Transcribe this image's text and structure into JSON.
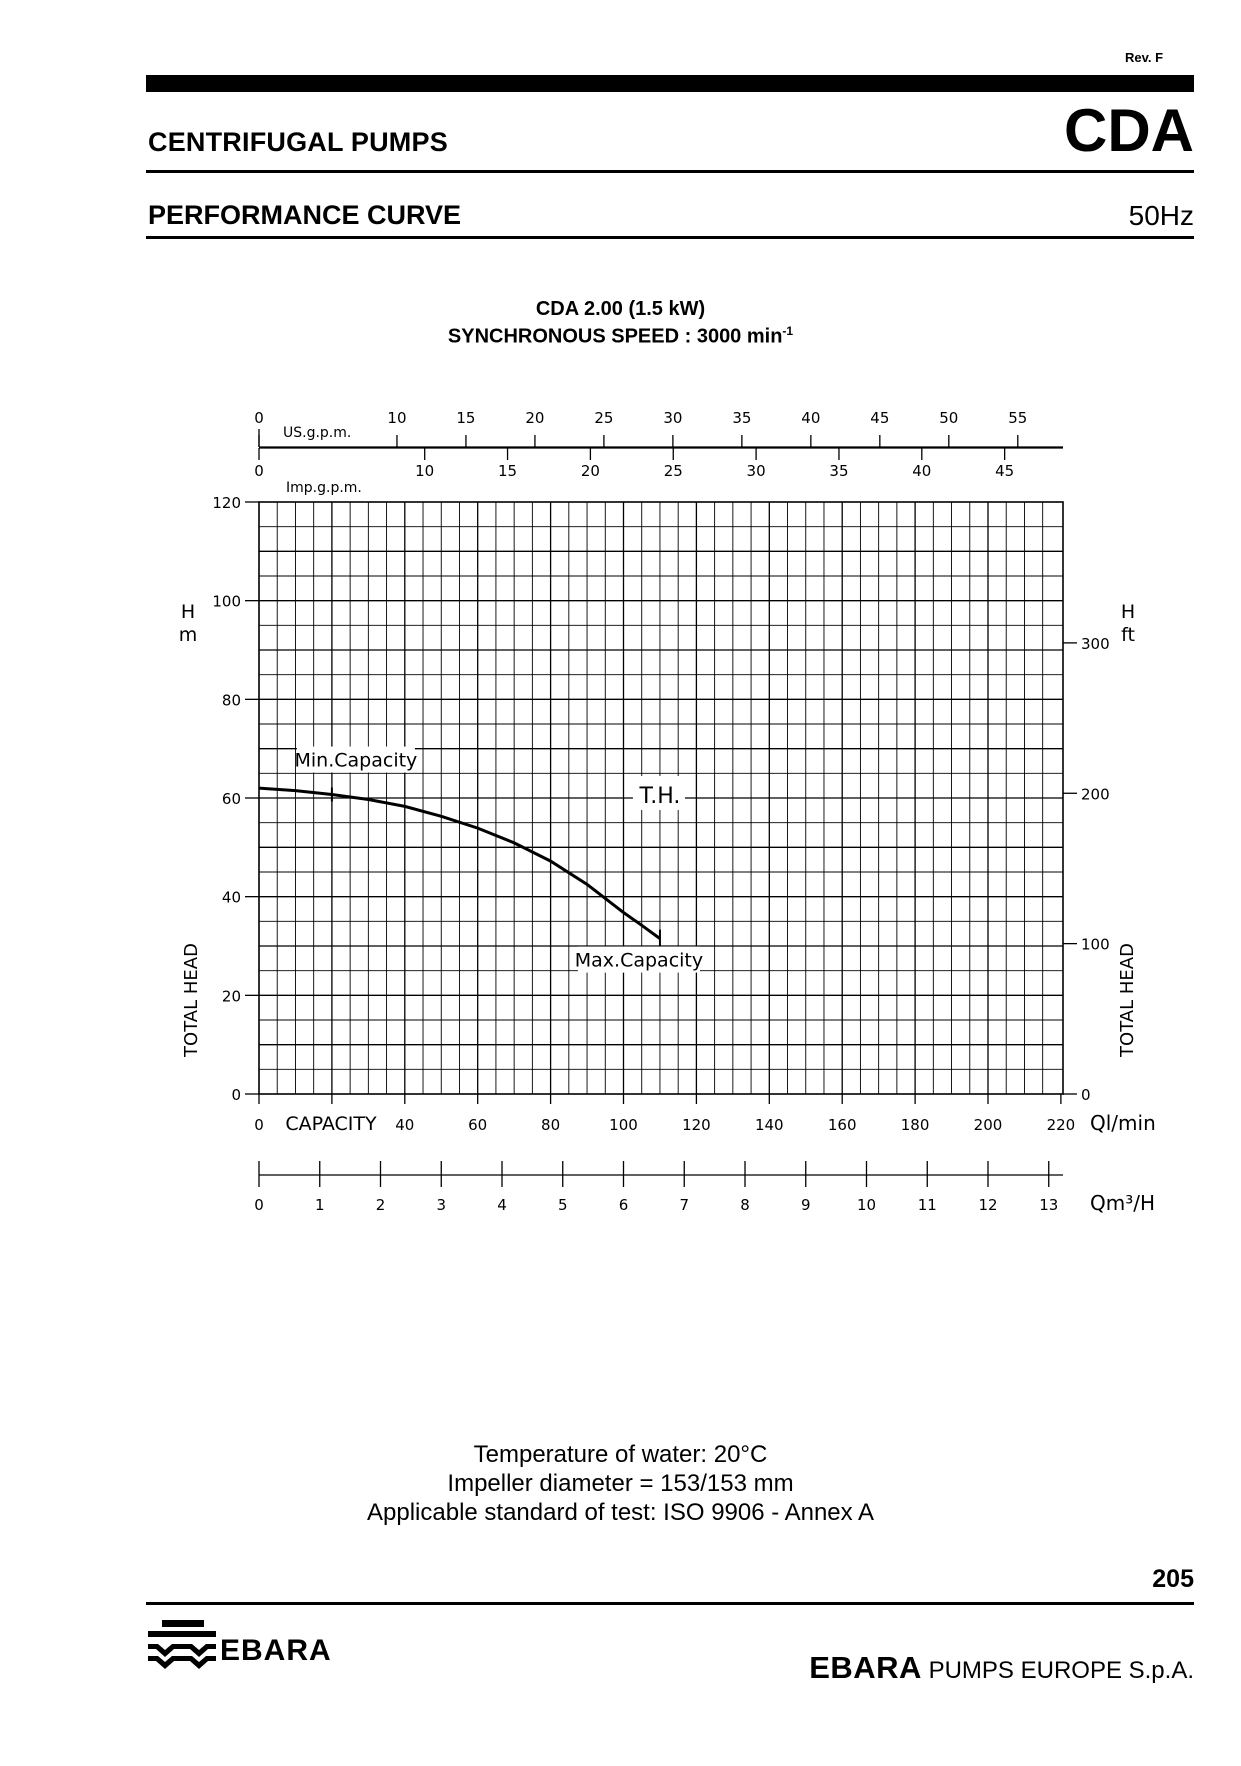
{
  "header": {
    "revision": "Rev. F",
    "category": "CENTRIFUGAL PUMPS",
    "series_code": "CDA",
    "section": "PERFORMANCE CURVE",
    "frequency": "50Hz"
  },
  "chart_title": {
    "line1": "CDA 2.00 (1.5 kW)",
    "line2": "SYNCHRONOUS SPEED : 3000 min",
    "line2_superscript": "-1"
  },
  "chart_data": {
    "type": "line",
    "series": [
      {
        "name": "T.H.",
        "x": [
          0,
          10,
          20,
          30,
          40,
          50,
          60,
          70,
          80,
          90,
          100,
          105,
          110
        ],
        "y": [
          62,
          61.5,
          60.7,
          59.7,
          58.3,
          56.3,
          53.9,
          50.9,
          47.2,
          42.5,
          36.8,
          34.2,
          31.5
        ]
      }
    ],
    "xlim": [
      0,
      220
    ],
    "ylim": [
      0,
      120
    ],
    "x_ticks": [
      0,
      20,
      40,
      60,
      80,
      100,
      120,
      140,
      160,
      180,
      200,
      220
    ],
    "x_tick_labels": [
      "0",
      "",
      "40",
      "60",
      "80",
      "100",
      "120",
      "140",
      "160",
      "180",
      "200",
      "220"
    ],
    "y_ticks": [
      0,
      20,
      40,
      60,
      80,
      100,
      120
    ],
    "y_tick_labels": [
      "0",
      "20",
      "40",
      "60",
      "80",
      "100",
      "120"
    ],
    "xlabel": "CAPACITY",
    "x_unit": "Ql/min",
    "ylabel_left_word": "TOTAL HEAD",
    "ylabel_left_sym": "H",
    "ylabel_left_unit": "m",
    "ylabel_right_word": "TOTAL HEAD",
    "ylabel_right_sym": "H",
    "ylabel_right_unit": "ft",
    "right_axis": {
      "ticks": [
        0,
        100,
        200,
        300
      ],
      "tick_labels": [
        "0",
        "100",
        "200",
        "300"
      ]
    },
    "us_gpm_axis": {
      "label": "US.g.p.m.",
      "ticks": [
        0,
        10,
        15,
        20,
        25,
        30,
        35,
        40,
        45,
        50,
        55
      ],
      "tick_labels": [
        "0",
        "10",
        "15",
        "20",
        "25",
        "30",
        "35",
        "40",
        "45",
        "50",
        "55"
      ]
    },
    "imp_gpm_axis": {
      "label": "Imp.g.p.m.",
      "ticks": [
        0,
        10,
        15,
        20,
        25,
        30,
        35,
        40,
        45
      ],
      "tick_labels": [
        "0",
        "10",
        "15",
        "20",
        "25",
        "30",
        "35",
        "40",
        "45"
      ]
    },
    "m3h_axis": {
      "unit": "Qm³/H",
      "ticks": [
        0,
        1,
        2,
        3,
        4,
        5,
        6,
        7,
        8,
        9,
        10,
        11,
        12,
        13
      ],
      "tick_labels": [
        "0",
        "1",
        "2",
        "3",
        "4",
        "5",
        "6",
        "7",
        "8",
        "9",
        "10",
        "11",
        "12",
        "13"
      ]
    },
    "annotations": {
      "min_capacity": {
        "text": "Min.Capacity",
        "x": 20,
        "y": 60.7
      },
      "max_capacity": {
        "text": "Max.Capacity",
        "x": 110,
        "y": 31.5
      },
      "curve_label": {
        "text": "T.H.",
        "x": 110,
        "y": 60
      }
    },
    "grid": true
  },
  "notes": {
    "line1": "Temperature of water: 20°C",
    "line2": "Impeller diameter = 153/153 mm",
    "line3": "Applicable standard of test: ISO 9906 - Annex A"
  },
  "page_number": "205",
  "footer": {
    "logo_word": "EBARA",
    "company_brand": "EBARA",
    "company_rest": " PUMPS EUROPE S.p.A."
  }
}
